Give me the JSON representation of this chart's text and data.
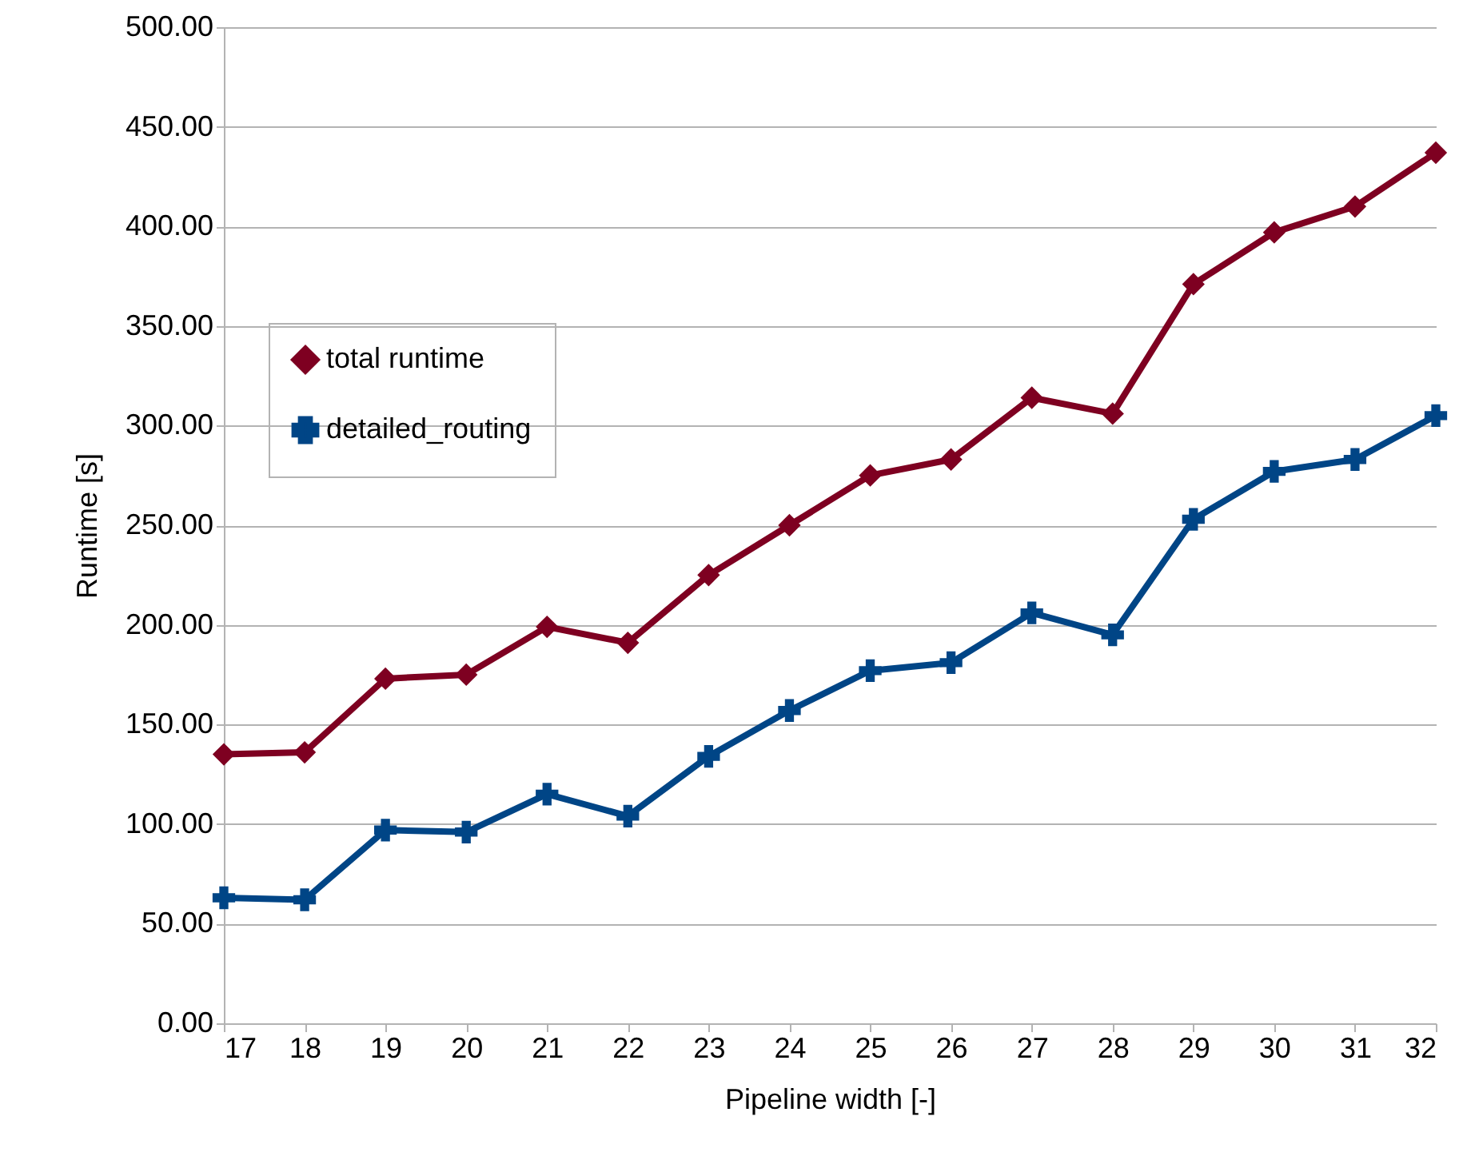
{
  "chart_data": {
    "type": "line",
    "xlabel": "Pipeline width [-]",
    "ylabel": "Runtime [s]",
    "x": [
      17,
      18,
      19,
      20,
      21,
      22,
      23,
      24,
      25,
      26,
      27,
      28,
      29,
      30,
      31,
      32
    ],
    "series": [
      {
        "name": "total runtime",
        "color": "#7e0021",
        "marker": "diamond",
        "values": [
          135,
          136,
          173,
          175,
          199,
          191,
          225,
          250,
          275,
          283,
          314,
          306,
          371,
          397,
          410,
          437
        ]
      },
      {
        "name": "detailed_routing",
        "color": "#004586",
        "marker": "cross",
        "values": [
          63,
          62,
          97,
          96,
          115,
          104,
          134,
          157,
          177,
          181,
          206,
          195,
          253,
          277,
          283,
          305
        ]
      }
    ],
    "xlim": [
      17,
      32
    ],
    "xticks": [
      17,
      18,
      19,
      20,
      21,
      22,
      23,
      24,
      25,
      26,
      27,
      28,
      29,
      30,
      31,
      32
    ],
    "ylim": [
      0,
      500
    ],
    "yticks": [
      {
        "value": 0,
        "label": "0.00"
      },
      {
        "value": 50,
        "label": "50.00"
      },
      {
        "value": 100,
        "label": "100.00"
      },
      {
        "value": 150,
        "label": "150.00"
      },
      {
        "value": 200,
        "label": "200.00"
      },
      {
        "value": 250,
        "label": "250.00"
      },
      {
        "value": 300,
        "label": "300.00"
      },
      {
        "value": 350,
        "label": "350.00"
      },
      {
        "value": 400,
        "label": "400.00"
      },
      {
        "value": 450,
        "label": "450.00"
      },
      {
        "value": 500,
        "label": "500.00"
      }
    ],
    "grid": "y",
    "legend": "left",
    "line_style": "solid"
  }
}
